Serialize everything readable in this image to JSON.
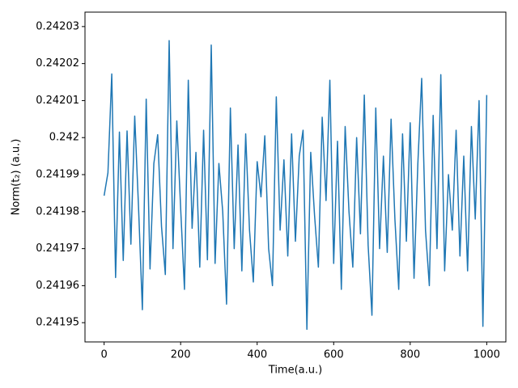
{
  "chart_data": {
    "type": "line",
    "xlabel": "Time(a.u.)",
    "ylabel": "Norm(t₂) (a.u.)",
    "x": [
      0,
      10,
      20,
      30,
      40,
      50,
      60,
      70,
      80,
      90,
      100,
      110,
      120,
      130,
      140,
      150,
      160,
      170,
      180,
      190,
      200,
      210,
      220,
      230,
      240,
      250,
      260,
      270,
      280,
      290,
      300,
      310,
      320,
      330,
      340,
      350,
      360,
      370,
      380,
      390,
      400,
      410,
      420,
      430,
      440,
      450,
      460,
      470,
      480,
      490,
      500,
      510,
      520,
      530,
      540,
      550,
      560,
      570,
      580,
      590,
      600,
      610,
      620,
      630,
      640,
      650,
      660,
      670,
      680,
      690,
      700,
      710,
      720,
      730,
      740,
      750,
      760,
      770,
      780,
      790,
      800,
      810,
      820,
      830,
      840,
      850,
      860,
      870,
      880,
      890,
      900,
      910,
      920,
      930,
      940,
      950,
      960,
      970,
      980,
      990,
      1000
    ],
    "series": [
      {
        "name": "Norm",
        "color": "#1f77b4",
        "values": [
          0.2419843,
          0.2419905,
          0.2420172,
          0.2419622,
          0.2420015,
          0.2419668,
          0.2420018,
          0.2419712,
          0.2420058,
          0.2419811,
          0.2419535,
          0.2420104,
          0.2419645,
          0.241993,
          0.2420008,
          0.241976,
          0.241963,
          0.2420262,
          0.24197,
          0.2420045,
          0.241981,
          0.241959,
          0.2420155,
          0.2419755,
          0.241996,
          0.241965,
          0.242002,
          0.241967,
          0.242025,
          0.241966,
          0.241993,
          0.24198,
          0.241955,
          0.242008,
          0.24197,
          0.241998,
          0.241964,
          0.242001,
          0.241975,
          0.241961,
          0.2419935,
          0.241984,
          0.2420005,
          0.24197,
          0.24196,
          0.242011,
          0.241975,
          0.241994,
          0.241968,
          0.242001,
          0.241972,
          0.241995,
          0.242002,
          0.2419482,
          0.241996,
          0.241979,
          0.241965,
          0.2420055,
          0.241983,
          0.2420155,
          0.241966,
          0.241999,
          0.241959,
          0.242003,
          0.24198,
          0.241965,
          0.242,
          0.241974,
          0.2420115,
          0.241971,
          0.241952,
          0.242008,
          0.24197,
          0.241995,
          0.241969,
          0.242005,
          0.241978,
          0.241959,
          0.242001,
          0.241972,
          0.242004,
          0.241962,
          0.241993,
          0.242016,
          0.241975,
          0.24196,
          0.242006,
          0.24197,
          0.242017,
          0.241964,
          0.24199,
          0.241975,
          0.242002,
          0.241968,
          0.241995,
          0.241964,
          0.242003,
          0.241978,
          0.24201,
          0.241949,
          0.2420115
        ]
      }
    ],
    "xlim": [
      -50,
      1050
    ],
    "xticks": [
      0,
      200,
      400,
      600,
      800,
      1000
    ],
    "ylim": [
      0.2419448,
      0.2420339
    ],
    "yticks": [
      0.24195,
      0.24196,
      0.24197,
      0.24198,
      0.24199,
      0.242,
      0.24201,
      0.24202,
      0.24203
    ],
    "grid": false
  }
}
